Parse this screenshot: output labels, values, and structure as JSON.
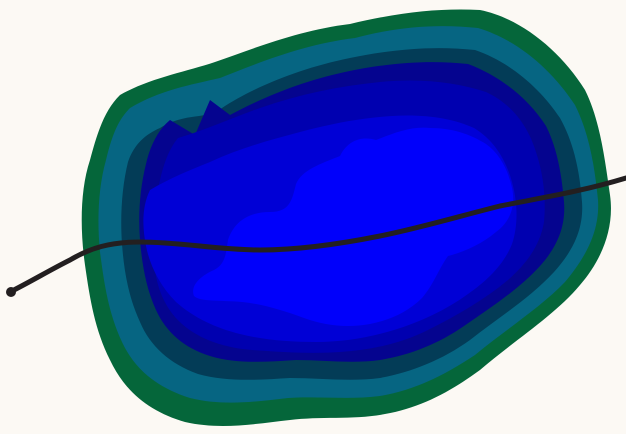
{
  "map": {
    "background_color": "#fcf9f4",
    "depth_zones": [
      {
        "zone": "shore",
        "color": "#05663a"
      },
      {
        "zone": "shallow",
        "color": "#066582"
      },
      {
        "zone": "medium-shallow",
        "color": "#033c57"
      },
      {
        "zone": "medium",
        "color": "#05048f"
      },
      {
        "zone": "medium-deep",
        "color": "#0000b0"
      },
      {
        "zone": "deep",
        "color": "#0000d6"
      },
      {
        "zone": "deepest",
        "color": "#0000fb"
      }
    ],
    "route_color": "#231f20"
  }
}
